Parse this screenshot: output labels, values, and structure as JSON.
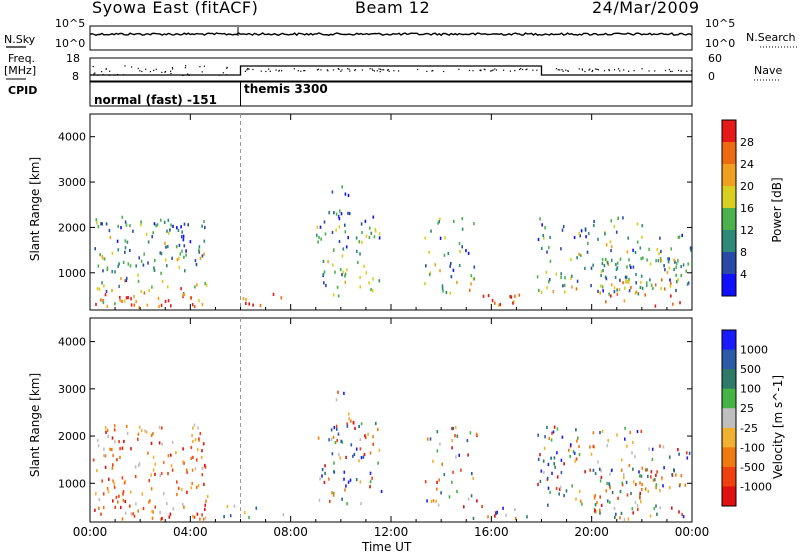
{
  "header": {
    "title": "Syowa East (fitACF)",
    "beam": "Beam 12",
    "date": "24/Mar/2009"
  },
  "noise_panel": {
    "left_label": "N.Sky",
    "right_label": "N.Search",
    "ticks": [
      "10^5",
      "10^0"
    ]
  },
  "freq_panel": {
    "left_label_line1": "Freq.",
    "left_label_line2": "[MHz]",
    "left_ticks": [
      "18",
      "8"
    ],
    "right_label": "Nave",
    "right_ticks": [
      "60",
      "0"
    ]
  },
  "cpid_panel": {
    "label": "CPID",
    "modes": [
      "normal (fast) -151",
      "themis 3300"
    ]
  },
  "chart_data": [
    {
      "type": "heatmap",
      "name": "power",
      "ylabel": "Slant Range [km]",
      "yticks": [
        "1000",
        "2000",
        "3000",
        "4000"
      ],
      "colorbar_label": "Power [dB]",
      "colorbar_ticks": [
        "4",
        "8",
        "12",
        "16",
        "20",
        "24",
        "28"
      ],
      "colors": [
        "#1010ff",
        "#2b4aa8",
        "#2e8a78",
        "#4cb04c",
        "#d8d020",
        "#f0a020",
        "#ee6a10",
        "#e61818"
      ],
      "ylim": [
        180,
        4500
      ]
    },
    {
      "type": "heatmap",
      "name": "velocity",
      "ylabel": "Slant Range [km]",
      "yticks": [
        "1000",
        "2000",
        "3000",
        "4000"
      ],
      "colorbar_label": "Velocity [m s^-1]",
      "colorbar_ticks": [
        "1000",
        "500",
        "100",
        "25",
        "-25",
        "-100",
        "-500",
        "-1000"
      ],
      "colors": [
        "#1a1aff",
        "#2b5aa8",
        "#2e7a68",
        "#44b444",
        "#bfbfbf",
        "#f0b030",
        "#f07a10",
        "#f04010",
        "#e01010"
      ],
      "ylim": [
        180,
        4500
      ]
    }
  ],
  "xaxis": {
    "label": "Time UT",
    "ticks": [
      "00:00",
      "04:00",
      "08:00",
      "12:00",
      "16:00",
      "20:00",
      "00:00"
    ]
  },
  "scatter_regions": [
    {
      "t0": 0.1,
      "t1": 4.7,
      "r0": 200,
      "r1": 2200,
      "density": 0.55
    },
    {
      "t0": 5.3,
      "t1": 8.0,
      "r0": 200,
      "r1": 500,
      "density": 0.3
    },
    {
      "t0": 9.0,
      "t1": 11.6,
      "r0": 450,
      "r1": 2300,
      "density": 0.45
    },
    {
      "t0": 9.6,
      "t1": 10.3,
      "r0": 1800,
      "r1": 2900,
      "density": 0.35
    },
    {
      "t0": 13.3,
      "t1": 15.4,
      "r0": 500,
      "r1": 2200,
      "density": 0.35
    },
    {
      "t0": 14.8,
      "t1": 17.4,
      "r0": 200,
      "r1": 500,
      "density": 0.5
    },
    {
      "t0": 17.8,
      "t1": 22.0,
      "r0": 500,
      "r1": 2200,
      "density": 0.45
    },
    {
      "t0": 20.0,
      "t1": 23.9,
      "r0": 200,
      "r1": 1300,
      "density": 0.5
    },
    {
      "t0": 22.0,
      "t1": 24.0,
      "r0": 800,
      "r1": 1800,
      "density": 0.3
    }
  ]
}
